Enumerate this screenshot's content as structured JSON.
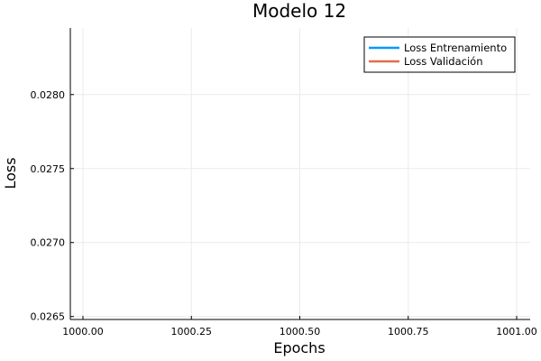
{
  "chart_data": {
    "type": "line",
    "title": "Modelo 12",
    "xlabel": "Epochs",
    "ylabel": "Loss",
    "xlim": [
      1000.0,
      1001.0
    ],
    "ylim": [
      0.02648,
      0.02845
    ],
    "x_ticks": [
      1000.0,
      1000.25,
      1000.5,
      1000.75,
      1001.0
    ],
    "x_tick_labels": [
      "1000.00",
      "1000.25",
      "1000.50",
      "1000.75",
      "1001.00"
    ],
    "y_ticks": [
      0.0265,
      0.027,
      0.0275,
      0.028
    ],
    "y_tick_labels": [
      "0.0265",
      "0.0270",
      "0.0275",
      "0.0280"
    ],
    "grid": true,
    "legend_position": "top-right",
    "series": [
      {
        "name": "Loss Entrenamiento",
        "color": "#009af9",
        "x": [],
        "y": []
      },
      {
        "name": "Loss Validación",
        "color": "#e26f46",
        "x": [],
        "y": []
      }
    ]
  }
}
